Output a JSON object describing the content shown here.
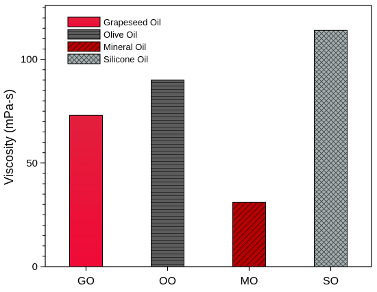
{
  "chart_data": {
    "type": "bar",
    "title": "",
    "xlabel": "",
    "ylabel": "Viscosity (mPa-s)",
    "categories": [
      "GO",
      "OO",
      "MO",
      "SO"
    ],
    "values": [
      73,
      90,
      31,
      114
    ],
    "ylim": [
      0,
      126
    ],
    "yticks_major": [
      0,
      50,
      100
    ],
    "yticks_minor_step": 5,
    "grid": false,
    "legend_position": "top-left",
    "series": [
      {
        "name": "Grapeseed Oil",
        "category": "GO",
        "value": 73,
        "fill": "#e8183c",
        "pattern": "solid"
      },
      {
        "name": "Olive Oil",
        "category": "OO",
        "value": 90,
        "fill": "#5a5a5a",
        "pattern": "horizontal-lines"
      },
      {
        "name": "Mineral Oil",
        "category": "MO",
        "value": 31,
        "fill": "#b00000",
        "pattern": "diagonal-lines"
      },
      {
        "name": "Silicone Oil",
        "category": "SO",
        "value": 114,
        "fill": "#9aa4a4",
        "pattern": "crosshatch"
      }
    ]
  }
}
